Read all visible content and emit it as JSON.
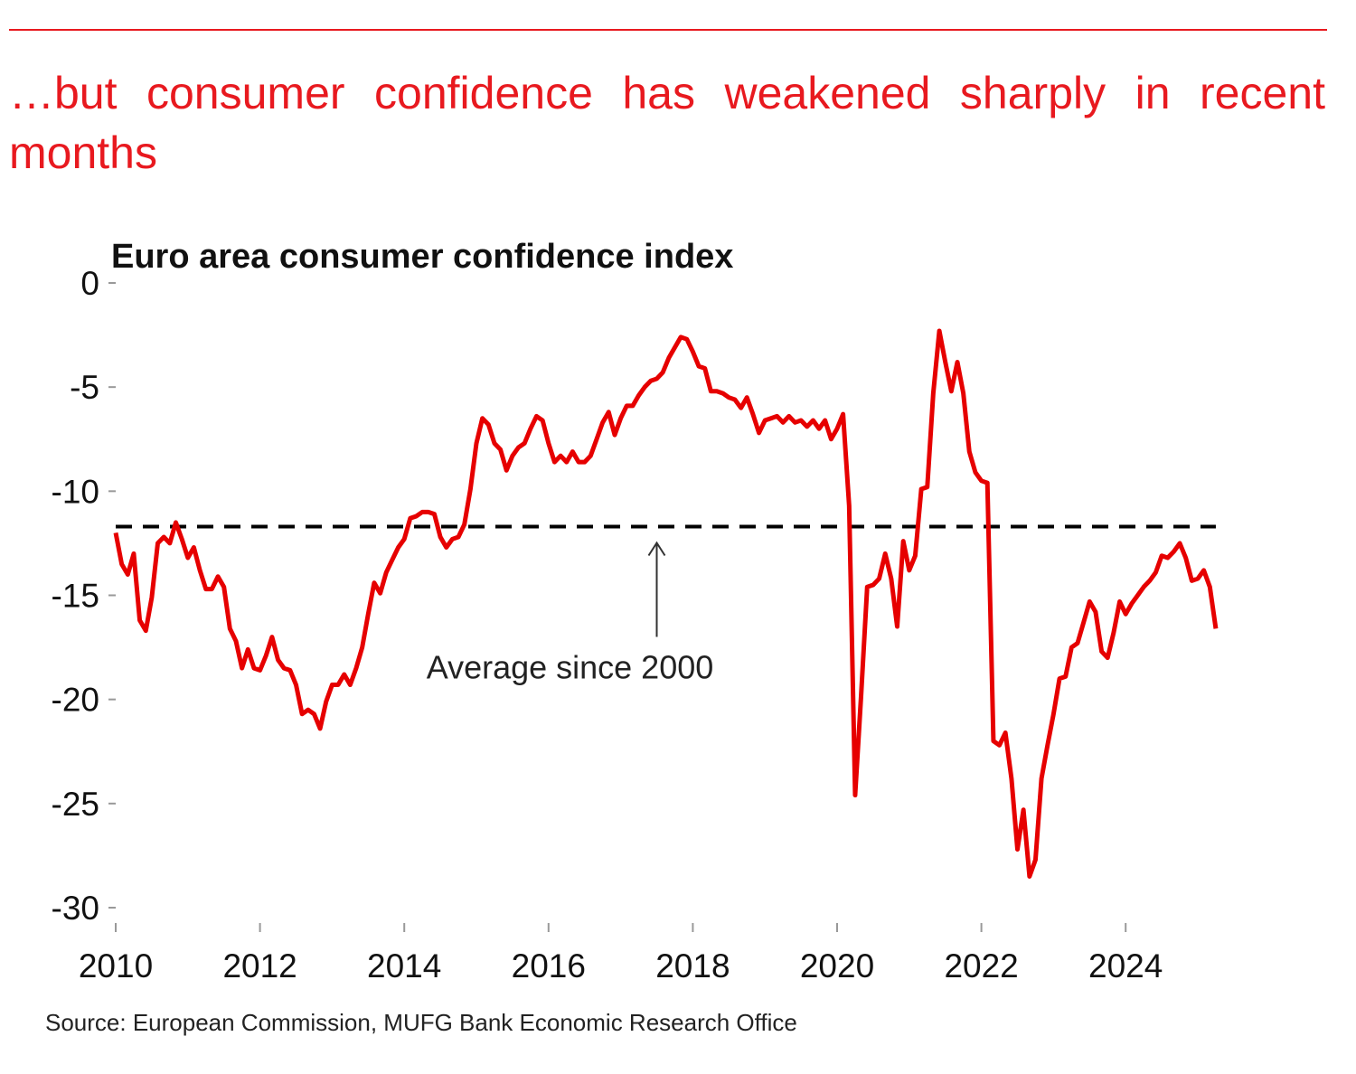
{
  "headline": "…but consumer confidence has weakened sharply in recent months",
  "source": "Source: European Commission, MUFG Bank Economic Research Office",
  "chart_data": {
    "type": "line",
    "title": "Euro area consumer confidence index",
    "x": [
      2010,
      2010.083,
      2010.167,
      2010.25,
      2010.333,
      2010.417,
      2010.5,
      2010.583,
      2010.667,
      2010.75,
      2010.833,
      2010.917,
      2011,
      2011.083,
      2011.167,
      2011.25,
      2011.333,
      2011.417,
      2011.5,
      2011.583,
      2011.667,
      2011.75,
      2011.833,
      2011.917,
      2012,
      2012.083,
      2012.167,
      2012.25,
      2012.333,
      2012.417,
      2012.5,
      2012.583,
      2012.667,
      2012.75,
      2012.833,
      2012.917,
      2013,
      2013.083,
      2013.167,
      2013.25,
      2013.333,
      2013.417,
      2013.5,
      2013.583,
      2013.667,
      2013.75,
      2013.833,
      2013.917,
      2014,
      2014.083,
      2014.167,
      2014.25,
      2014.333,
      2014.417,
      2014.5,
      2014.583,
      2014.667,
      2014.75,
      2014.833,
      2014.917,
      2015,
      2015.083,
      2015.167,
      2015.25,
      2015.333,
      2015.417,
      2015.5,
      2015.583,
      2015.667,
      2015.75,
      2015.833,
      2015.917,
      2016,
      2016.083,
      2016.167,
      2016.25,
      2016.333,
      2016.417,
      2016.5,
      2016.583,
      2016.667,
      2016.75,
      2016.833,
      2016.917,
      2017,
      2017.083,
      2017.167,
      2017.25,
      2017.333,
      2017.417,
      2017.5,
      2017.583,
      2017.667,
      2017.75,
      2017.833,
      2017.917,
      2018,
      2018.083,
      2018.167,
      2018.25,
      2018.333,
      2018.417,
      2018.5,
      2018.583,
      2018.667,
      2018.75,
      2018.833,
      2018.917,
      2019,
      2019.083,
      2019.167,
      2019.25,
      2019.333,
      2019.417,
      2019.5,
      2019.583,
      2019.667,
      2019.75,
      2019.833,
      2019.917,
      2020,
      2020.083,
      2020.167,
      2020.25,
      2020.333,
      2020.417,
      2020.5,
      2020.583,
      2020.667,
      2020.75,
      2020.833,
      2020.917,
      2021,
      2021.083,
      2021.167,
      2021.25,
      2021.333,
      2021.417,
      2021.5,
      2021.583,
      2021.667,
      2021.75,
      2021.833,
      2021.917,
      2022,
      2022.083,
      2022.167,
      2022.25,
      2022.333,
      2022.417,
      2022.5,
      2022.583,
      2022.667,
      2022.75,
      2022.833,
      2022.917,
      2023,
      2023.083,
      2023.167,
      2023.25,
      2023.333,
      2023.417,
      2023.5,
      2023.583,
      2023.667,
      2023.75,
      2023.833,
      2023.917,
      2024,
      2024.083,
      2024.167,
      2024.25,
      2024.333,
      2024.417,
      2024.5,
      2024.583,
      2024.667,
      2024.75,
      2024.833,
      2024.917,
      2025,
      2025.083,
      2025.167,
      2025.25
    ],
    "series": [
      {
        "color": "#e60000",
        "values": [
          -12.0,
          -13.5,
          -14.0,
          -13.0,
          -16.2,
          -16.7,
          -15.1,
          -12.5,
          -12.2,
          -12.5,
          -11.5,
          -12.3,
          -13.2,
          -12.7,
          -13.8,
          -14.7,
          -14.7,
          -14.1,
          -14.6,
          -16.6,
          -17.2,
          -18.5,
          -17.6,
          -18.5,
          -18.6,
          -17.9,
          -17.0,
          -18.1,
          -18.5,
          -18.6,
          -19.3,
          -20.7,
          -20.5,
          -20.7,
          -21.4,
          -20.1,
          -19.3,
          -19.3,
          -18.8,
          -19.3,
          -18.5,
          -17.5,
          -15.9,
          -14.4,
          -14.9,
          -13.9,
          -13.3,
          -12.7,
          -12.3,
          -11.3,
          -11.2,
          -11.0,
          -11.0,
          -11.1,
          -12.2,
          -12.7,
          -12.3,
          -12.2,
          -11.6,
          -9.9,
          -7.7,
          -6.5,
          -6.8,
          -7.7,
          -8.0,
          -9.0,
          -8.3,
          -7.9,
          -7.7,
          -7.0,
          -6.4,
          -6.6,
          -7.7,
          -8.6,
          -8.3,
          -8.6,
          -8.1,
          -8.6,
          -8.6,
          -8.3,
          -7.5,
          -6.7,
          -6.2,
          -7.3,
          -6.5,
          -5.9,
          -5.9,
          -5.4,
          -5.0,
          -4.7,
          -4.6,
          -4.3,
          -3.6,
          -3.1,
          -2.6,
          -2.7,
          -3.3,
          -4.0,
          -4.1,
          -5.2,
          -5.2,
          -5.3,
          -5.5,
          -5.6,
          -6.0,
          -5.5,
          -6.3,
          -7.2,
          -6.6,
          -6.5,
          -6.4,
          -6.7,
          -6.4,
          -6.7,
          -6.6,
          -6.9,
          -6.6,
          -7.0,
          -6.6,
          -7.5,
          -7.0,
          -6.3,
          -10.7,
          -24.6,
          -19.8,
          -14.6,
          -14.5,
          -14.2,
          -13.0,
          -14.2,
          -16.5,
          -12.4,
          -13.8,
          -13.1,
          -9.9,
          -9.8,
          -5.3,
          -2.3,
          -3.8,
          -5.2,
          -3.8,
          -5.3,
          -8.1,
          -9.1,
          -9.5,
          -9.6,
          -22.0,
          -22.2,
          -21.6,
          -23.8,
          -27.2,
          -25.3,
          -28.5,
          -27.7,
          -23.8,
          -22.2,
          -20.7,
          -19.0,
          -18.9,
          -17.5,
          -17.3,
          -16.3,
          -15.3,
          -15.8,
          -17.7,
          -18.0,
          -16.8,
          -15.3,
          -15.9,
          -15.4,
          -15.0,
          -14.6,
          -14.3,
          -13.9,
          -13.1,
          -13.2,
          -12.9,
          -12.5,
          -13.2,
          -14.3,
          -14.2,
          -13.8,
          -14.6,
          -16.6
        ]
      }
    ],
    "reference_line": {
      "value": -11.7,
      "label": "Average since 2000",
      "color": "#000000",
      "dashed": true
    },
    "xlim": [
      2010,
      2025.5
    ],
    "xticks": [
      2010,
      2012,
      2014,
      2016,
      2018,
      2020,
      2022,
      2024
    ],
    "ylim": [
      -30,
      0
    ],
    "yticks": [
      0,
      -5,
      -10,
      -15,
      -20,
      -25,
      -30
    ],
    "grid": false
  }
}
